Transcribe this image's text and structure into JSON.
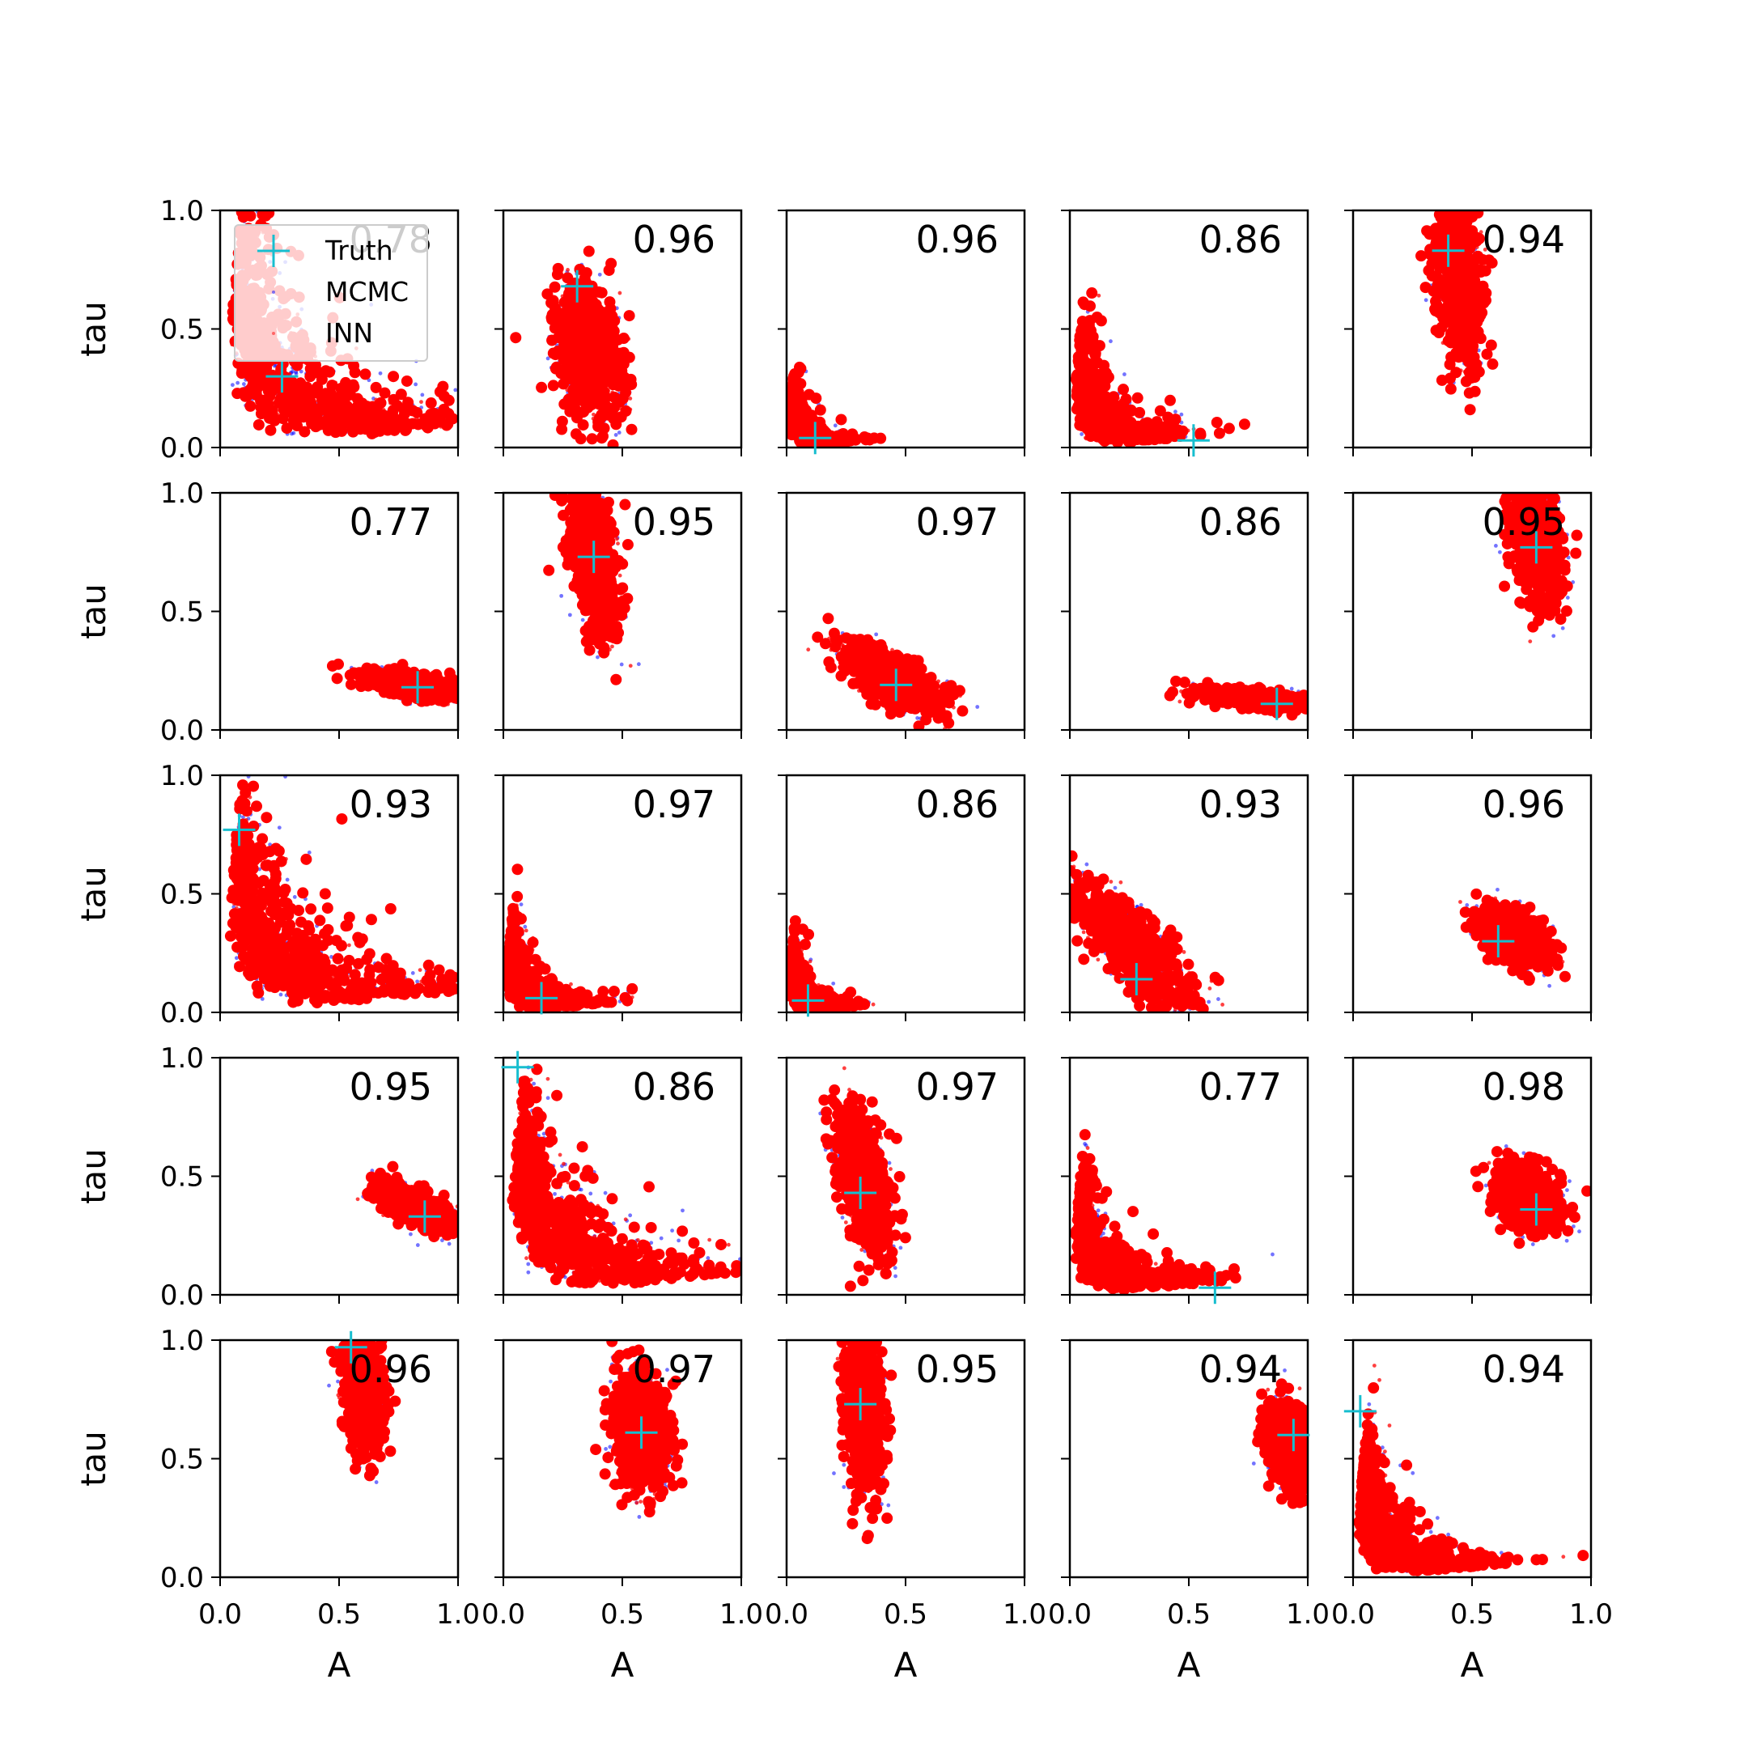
{
  "chart_data": {
    "type": "scatter",
    "layout": "5x5 grid of subplots",
    "xlabel": "A",
    "ylabel": "tau",
    "xlim": [
      0,
      1
    ],
    "ylim": [
      0,
      1
    ],
    "xticks": [
      "0.0",
      "0.5",
      "1.0"
    ],
    "yticks": [
      "0.0",
      "0.5",
      "1.0"
    ],
    "legend": {
      "placement": "top-left of first subplot",
      "entries": [
        {
          "label": "Truth",
          "marker": "+",
          "color": "#17becf"
        },
        {
          "label": "MCMC",
          "marker": ".",
          "color": "#0000ff"
        },
        {
          "label": "INN",
          "marker": ".",
          "color": "#ff0000"
        }
      ]
    },
    "colors": {
      "truth": "#17becf",
      "mcmc": "#0000ff",
      "inn": "#ff0000"
    },
    "panels": [
      {
        "overlap": "0.78",
        "truth": [
          0.26,
          0.3
        ],
        "shape": "curve"
      },
      {
        "overlap": "0.96",
        "truth": [
          0.31,
          0.68
        ],
        "shape": "blob",
        "center": [
          0.36,
          0.4
        ],
        "spread": [
          0.07,
          0.14
        ],
        "rho": -0.3
      },
      {
        "overlap": "0.96",
        "truth": [
          0.12,
          0.04
        ],
        "shape": "curve"
      },
      {
        "overlap": "0.86",
        "truth": [
          0.52,
          0.03
        ],
        "shape": "curve"
      },
      {
        "overlap": "0.94",
        "truth": [
          0.4,
          0.83
        ],
        "shape": "blob",
        "center": [
          0.44,
          0.75
        ],
        "spread": [
          0.05,
          0.2
        ],
        "rho": -0.3
      },
      {
        "overlap": "0.77",
        "truth": [
          0.83,
          0.18
        ],
        "shape": "blob",
        "center": [
          0.82,
          0.19
        ],
        "spread": [
          0.11,
          0.03
        ],
        "rho": -0.6
      },
      {
        "overlap": "0.95",
        "truth": [
          0.38,
          0.73
        ],
        "shape": "blob",
        "center": [
          0.38,
          0.72
        ],
        "spread": [
          0.05,
          0.16
        ],
        "rho": -0.4
      },
      {
        "overlap": "0.97",
        "truth": [
          0.46,
          0.19
        ],
        "shape": "blob",
        "center": [
          0.43,
          0.22
        ],
        "spread": [
          0.1,
          0.07
        ],
        "rho": -0.7
      },
      {
        "overlap": "0.86",
        "truth": [
          0.87,
          0.11
        ],
        "shape": "blob",
        "center": [
          0.8,
          0.13
        ],
        "spread": [
          0.12,
          0.02
        ],
        "rho": -0.5
      },
      {
        "overlap": "0.95",
        "truth": [
          0.77,
          0.77
        ],
        "shape": "blob",
        "center": [
          0.77,
          0.82
        ],
        "spread": [
          0.05,
          0.15
        ],
        "rho": -0.4
      },
      {
        "overlap": "0.93",
        "truth": [
          0.08,
          0.77
        ],
        "shape": "curve"
      },
      {
        "overlap": "0.97",
        "truth": [
          0.16,
          0.06
        ],
        "shape": "curve"
      },
      {
        "overlap": "0.86",
        "truth": [
          0.09,
          0.05
        ],
        "shape": "curve"
      },
      {
        "overlap": "0.93",
        "truth": [
          0.28,
          0.14
        ],
        "shape": "blob",
        "center": [
          0.26,
          0.28
        ],
        "spread": [
          0.13,
          0.14
        ],
        "rho": -0.8
      },
      {
        "overlap": "0.96",
        "truth": [
          0.61,
          0.3
        ],
        "shape": "blob",
        "center": [
          0.67,
          0.32
        ],
        "spread": [
          0.07,
          0.06
        ],
        "rho": -0.4
      },
      {
        "overlap": "0.95",
        "truth": [
          0.86,
          0.33
        ],
        "shape": "blob",
        "center": [
          0.82,
          0.37
        ],
        "spread": [
          0.08,
          0.05
        ],
        "rho": -0.7
      },
      {
        "overlap": "0.86",
        "truth": [
          0.06,
          0.96
        ],
        "shape": "curve"
      },
      {
        "overlap": "0.97",
        "truth": [
          0.31,
          0.43
        ],
        "shape": "blob",
        "center": [
          0.33,
          0.47
        ],
        "spread": [
          0.06,
          0.15
        ],
        "rho": -0.5
      },
      {
        "overlap": "0.77",
        "truth": [
          0.61,
          0.03
        ],
        "shape": "curve"
      },
      {
        "overlap": "0.98",
        "truth": [
          0.77,
          0.36
        ],
        "shape": "blob",
        "center": [
          0.73,
          0.41
        ],
        "spread": [
          0.07,
          0.07
        ],
        "rho": -0.3
      },
      {
        "overlap": "0.96",
        "truth": [
          0.55,
          0.97
        ],
        "shape": "blob",
        "center": [
          0.6,
          0.8
        ],
        "spread": [
          0.04,
          0.13
        ],
        "rho": -0.3
      },
      {
        "overlap": "0.97",
        "truth": [
          0.58,
          0.61
        ],
        "shape": "blob",
        "center": [
          0.58,
          0.62
        ],
        "spread": [
          0.06,
          0.12
        ],
        "rho": -0.2
      },
      {
        "overlap": "0.95",
        "truth": [
          0.31,
          0.73
        ],
        "shape": "blob",
        "center": [
          0.32,
          0.72
        ],
        "spread": [
          0.04,
          0.18
        ],
        "rho": -0.2
      },
      {
        "overlap": "0.94",
        "truth": [
          0.94,
          0.6
        ],
        "shape": "blob",
        "center": [
          0.92,
          0.56
        ],
        "spread": [
          0.05,
          0.09
        ],
        "rho": -0.3
      },
      {
        "overlap": "0.94",
        "truth": [
          0.03,
          0.7
        ],
        "shape": "curve"
      }
    ]
  }
}
